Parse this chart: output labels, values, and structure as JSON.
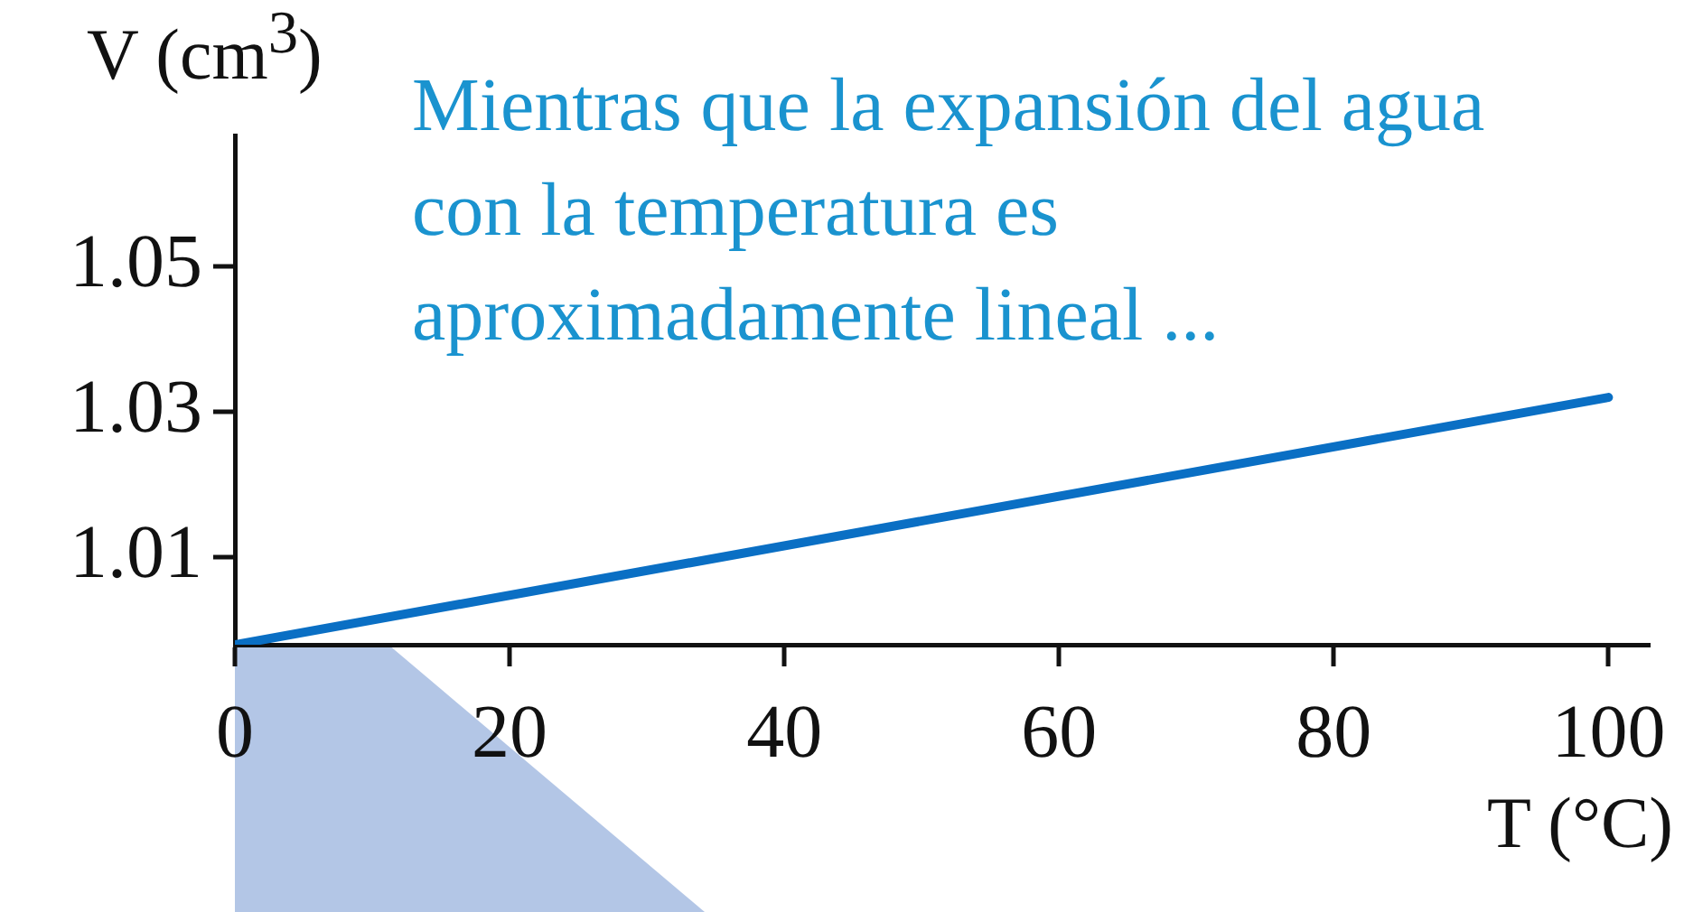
{
  "chart_data": {
    "type": "line",
    "x": [
      0,
      100
    ],
    "series": [
      {
        "color": "#0a6fc4",
        "values": [
          0.998,
          1.032
        ]
      }
    ],
    "xlim": [
      0,
      103
    ],
    "ylim": [
      0.998,
      1.068
    ],
    "xticks": [
      0,
      20,
      40,
      60,
      80,
      100
    ],
    "yticks": [
      1.01,
      1.03,
      1.05
    ],
    "xlabel": "T (°C)",
    "ylabel": "V (cm$^{3}$)",
    "annotations": [
      "Mientras que la expansión del agua con la temperatura es aproximadamente lineal ..."
    ],
    "grid": false,
    "legend": false,
    "marker": "none",
    "line_style": "solid"
  }
}
